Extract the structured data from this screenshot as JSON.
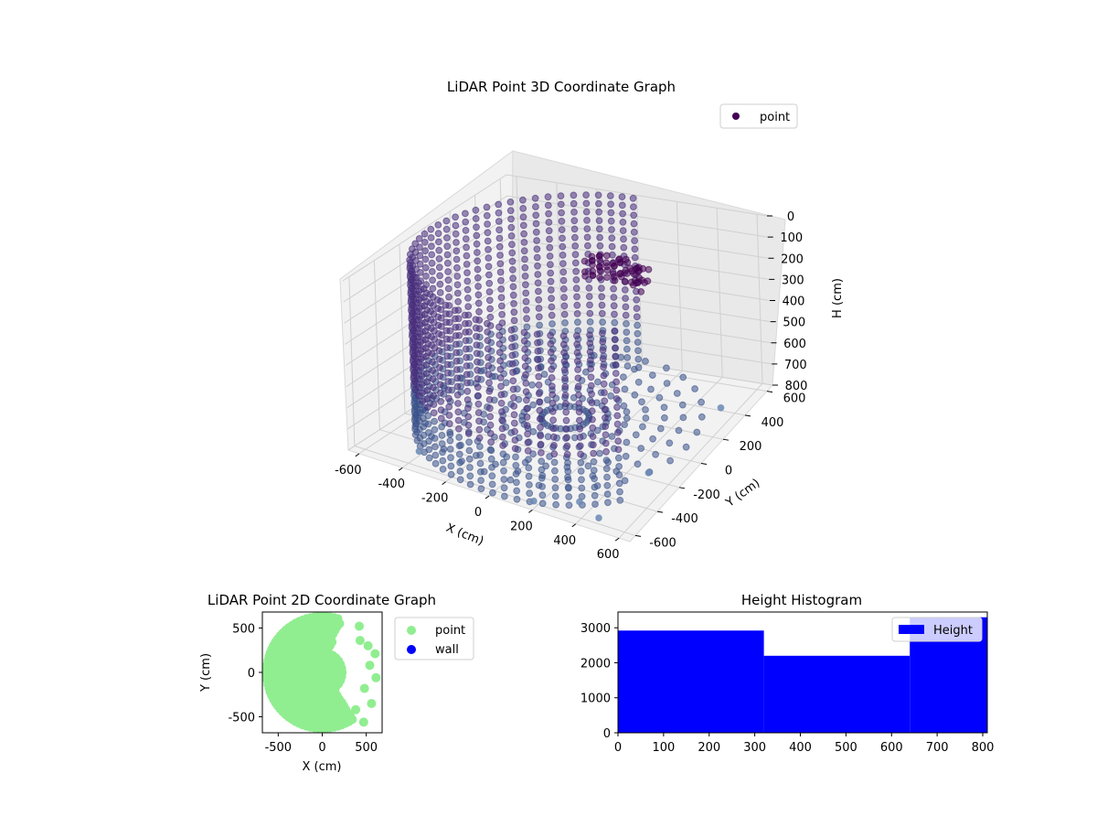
{
  "chart_data": [
    {
      "type": "scatter",
      "title": "LiDAR Point 3D Coordinate Graph",
      "xlabel": "X (cm)",
      "ylabel": "Y (cm)",
      "zlabel": "H (cm)",
      "xlim": [
        -650,
        650
      ],
      "ylim": [
        -650,
        650
      ],
      "zlim": [
        800,
        0
      ],
      "x_ticks": [
        -600,
        -400,
        -200,
        0,
        200,
        400,
        600
      ],
      "y_ticks": [
        -600,
        -400,
        -200,
        0,
        200,
        400,
        600
      ],
      "z_ticks": [
        0,
        100,
        200,
        300,
        400,
        500,
        600,
        700,
        800
      ],
      "legend": [
        "point"
      ],
      "legend_position": "top-right",
      "grid": true,
      "colors": {
        "point": "#440154",
        "point_light": "#3b528b",
        "outlier": "#6a8ab5"
      },
      "series": [
        {
          "name": "point",
          "description_points": {
            "wall_ring_radius": 620,
            "wall_heights": [
              0,
              800
            ],
            "open_arc_deg": [
              -40,
              90
            ],
            "scattered": [
              {
                "x": 460,
                "y": -560,
                "z": 800
              },
              {
                "x": 520,
                "y": 420,
                "z": 800
              },
              {
                "x": 350,
                "y": -520,
                "z": 780
              },
              {
                "x": -420,
                "y": -480,
                "z": 800
              },
              {
                "x": 180,
                "y": -600,
                "z": 790
              },
              {
                "x": 560,
                "y": -300,
                "z": 700
              }
            ]
          }
        }
      ]
    },
    {
      "type": "scatter",
      "title": "LiDAR Point 2D Coordinate Graph",
      "xlabel": "X (cm)",
      "ylabel": "Y (cm)",
      "xlim": [
        -680,
        680
      ],
      "ylim": [
        -680,
        680
      ],
      "x_ticks": [
        -500,
        0,
        500
      ],
      "y_ticks": [
        -500,
        0,
        500
      ],
      "legend": [
        "point",
        "wall"
      ],
      "legend_position": "outside-right",
      "colors": {
        "point": "#90ee90",
        "wall": "#0000ff"
      },
      "series": [
        {
          "name": "point",
          "filled_disk_radius": 640,
          "open_arc_deg": [
            -55,
            70
          ]
        },
        {
          "name": "wall",
          "values": []
        }
      ]
    },
    {
      "type": "bar",
      "title": "Height Histogram",
      "xlabel": "",
      "ylabel": "",
      "xlim": [
        0,
        810
      ],
      "ylim": [
        0,
        3450
      ],
      "x_ticks": [
        0,
        100,
        200,
        300,
        400,
        500,
        600,
        700,
        800
      ],
      "y_ticks": [
        0,
        1000,
        2000,
        3000
      ],
      "legend": [
        "Height"
      ],
      "legend_position": "top-right",
      "colors": {
        "Height": "#0000ff"
      },
      "bins": [
        {
          "from": 0,
          "to": 320,
          "value": 2920
        },
        {
          "from": 320,
          "to": 640,
          "value": 2200
        },
        {
          "from": 640,
          "to": 810,
          "value": 3300
        }
      ]
    }
  ]
}
